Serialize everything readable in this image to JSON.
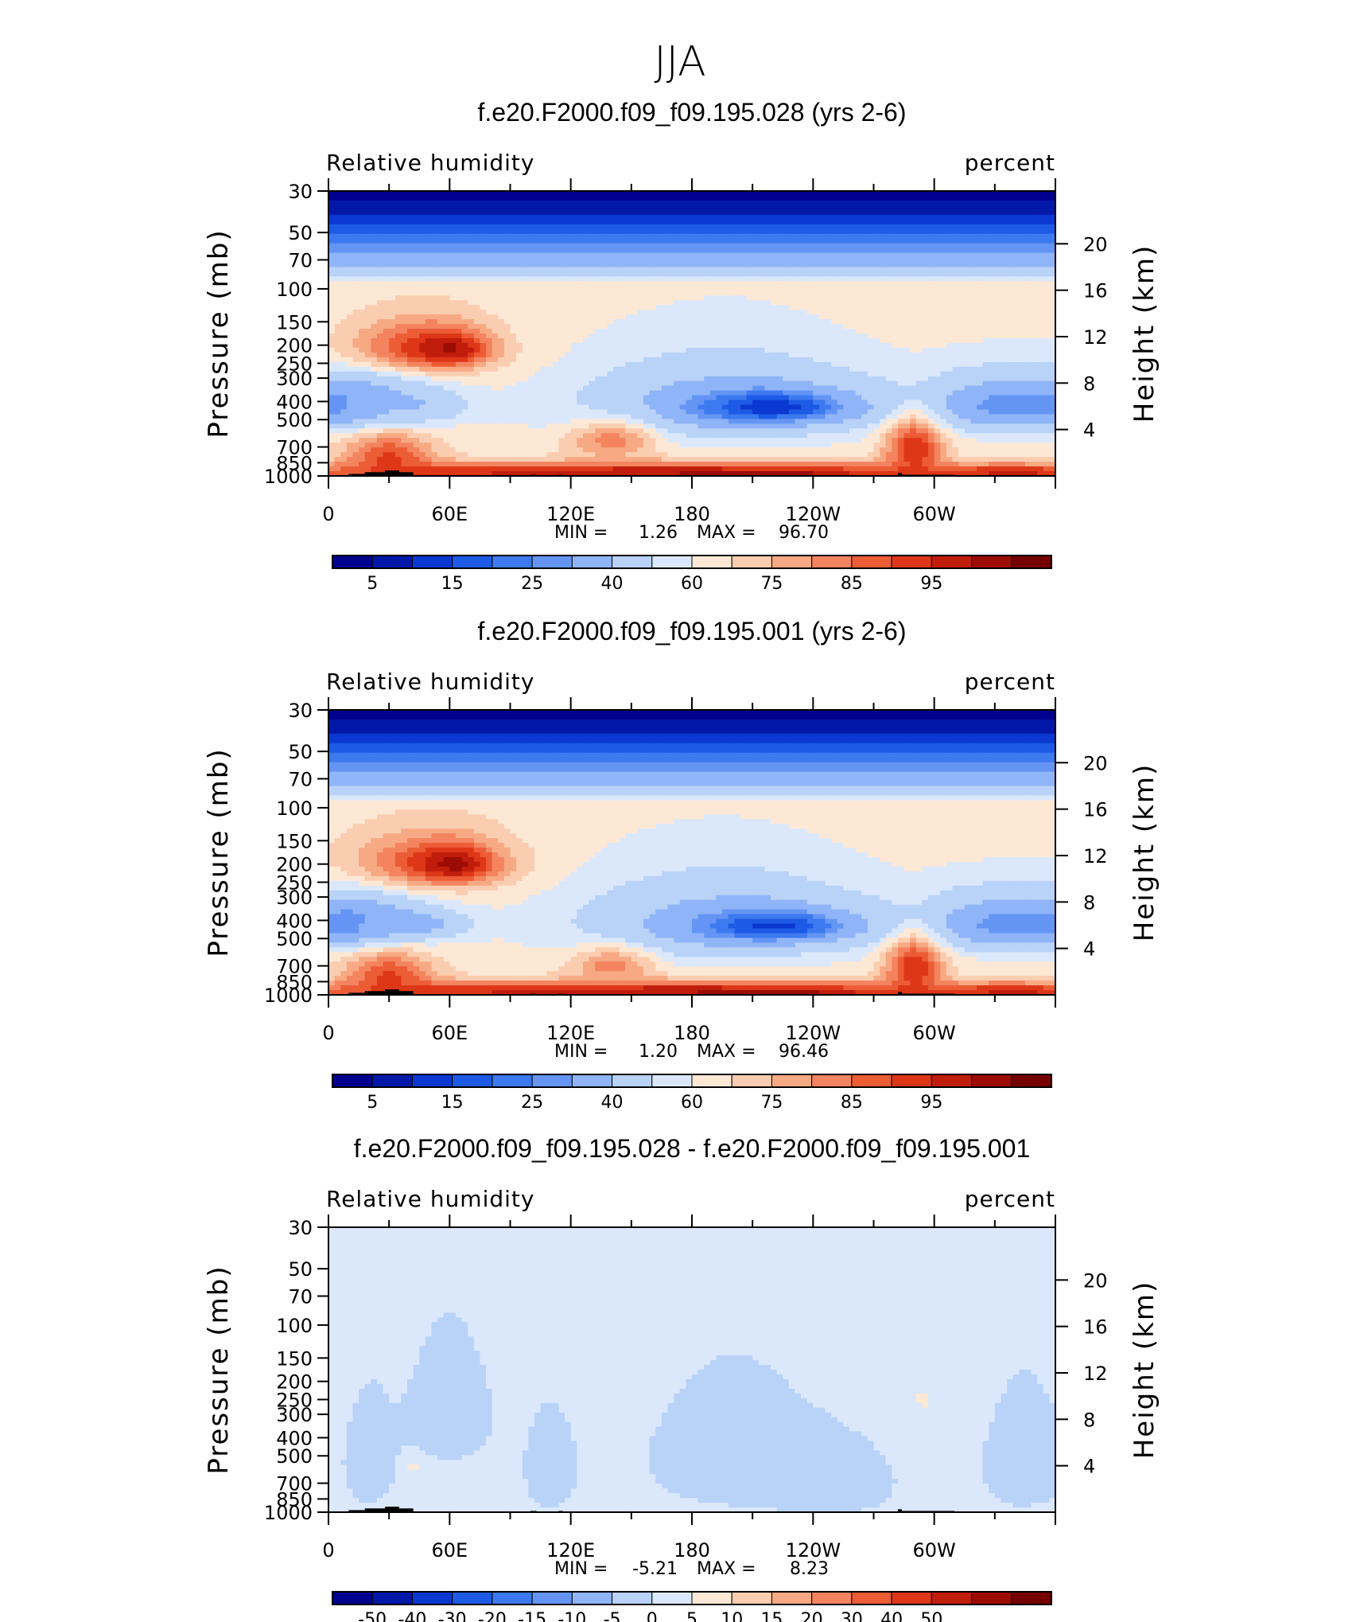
{
  "page_title": "JJA",
  "colors": {
    "rh_scale": [
      "#00008f",
      "#0218a8",
      "#0a38d0",
      "#1d5ae6",
      "#3d79ef",
      "#6495f4",
      "#8fb4f7",
      "#b9d2f7",
      "#dbe8fb",
      "#fde8d6",
      "#fbcdb0",
      "#f7a983",
      "#f3845f",
      "#ec5c35",
      "#dd3718",
      "#c11d0c",
      "#9c0c04",
      "#750000"
    ],
    "diff_scale": [
      "#00008f",
      "#0218a8",
      "#0a38d0",
      "#1d5ae6",
      "#3d79ef",
      "#6495f4",
      "#8fb4f7",
      "#b9d2f7",
      "#dbe8fb",
      "#fde8d6",
      "#fbcdb0",
      "#f7a983",
      "#f3845f",
      "#ec5c35",
      "#dd3718",
      "#c11d0c",
      "#9c0c04",
      "#750000"
    ],
    "terrain": "#000000"
  },
  "chart_data": [
    {
      "type": "heatmap",
      "title": "f.e20.F2000.f09_f09.195.028 (yrs 2-6)",
      "field_label": "Relative humidity",
      "units_label": "percent",
      "ylabel": "Pressure (mb)",
      "y2label": "Height (km)",
      "x_ticks": [
        "0",
        "60E",
        "120E",
        "180",
        "120W",
        "60W"
      ],
      "x_tick_lon": [
        0,
        60,
        120,
        180,
        240,
        300
      ],
      "xlim": [
        0,
        360
      ],
      "y_ticks": [
        "30",
        "50",
        "70",
        "100",
        "150",
        "200",
        "250",
        "300",
        "400",
        "500",
        "700",
        "850",
        "1000"
      ],
      "y_tick_p": [
        30,
        50,
        70,
        100,
        150,
        200,
        250,
        300,
        400,
        500,
        700,
        850,
        1000
      ],
      "y_scale": "log",
      "ylim": [
        1000,
        30
      ],
      "y2_ticks": [
        "20",
        "16",
        "12",
        "8",
        "4"
      ],
      "y2_tick_km": [
        20,
        16,
        12,
        8,
        4
      ],
      "stats": {
        "min_label": "MIN =",
        "min": "1.26",
        "max_label": "MAX =",
        "max": "96.70"
      },
      "colorbar_labels": [
        "5",
        "15",
        "25",
        "40",
        "60",
        "75",
        "85",
        "95"
      ],
      "levels": [
        5,
        10,
        15,
        20,
        25,
        30,
        40,
        50,
        55,
        60,
        65,
        70,
        75,
        80,
        85,
        90,
        95
      ],
      "blobs": [
        {
          "x": 180,
          "y": 650,
          "rx": 260,
          "ry": 500,
          "v": 57
        },
        {
          "x": 45,
          "y": 210,
          "rx": 35,
          "ry": 70,
          "v": 82
        },
        {
          "x": 60,
          "y": 210,
          "rx": 18,
          "ry": 40,
          "v": 92
        },
        {
          "x": 10,
          "y": 420,
          "rx": 35,
          "ry": 130,
          "v": 22
        },
        {
          "x": 35,
          "y": 420,
          "rx": 30,
          "ry": 80,
          "v": 38
        },
        {
          "x": 195,
          "y": 420,
          "rx": 70,
          "ry": 200,
          "v": 35
        },
        {
          "x": 220,
          "y": 430,
          "rx": 40,
          "ry": 90,
          "v": 12
        },
        {
          "x": 345,
          "y": 420,
          "rx": 55,
          "ry": 140,
          "v": 25
        },
        {
          "x": 30,
          "y": 780,
          "rx": 22,
          "ry": 200,
          "v": 80
        },
        {
          "x": 160,
          "y": 960,
          "rx": 200,
          "ry": 120,
          "v": 90
        },
        {
          "x": 220,
          "y": 990,
          "rx": 30,
          "ry": 30,
          "v": 97
        },
        {
          "x": 290,
          "y": 720,
          "rx": 14,
          "ry": 250,
          "v": 85
        },
        {
          "x": 340,
          "y": 960,
          "rx": 30,
          "ry": 80,
          "v": 88
        },
        {
          "x": 140,
          "y": 650,
          "rx": 22,
          "ry": 150,
          "v": 72
        }
      ]
    },
    {
      "type": "heatmap",
      "title": "f.e20.F2000.f09_f09.195.001 (yrs 2-6)",
      "field_label": "Relative humidity",
      "units_label": "percent",
      "ylabel": "Pressure (mb)",
      "y2label": "Height (km)",
      "x_ticks": [
        "0",
        "60E",
        "120E",
        "180",
        "120W",
        "60W"
      ],
      "x_tick_lon": [
        0,
        60,
        120,
        180,
        240,
        300
      ],
      "xlim": [
        0,
        360
      ],
      "y_ticks": [
        "30",
        "50",
        "70",
        "100",
        "150",
        "200",
        "250",
        "300",
        "400",
        "500",
        "700",
        "850",
        "1000"
      ],
      "y_tick_p": [
        30,
        50,
        70,
        100,
        150,
        200,
        250,
        300,
        400,
        500,
        700,
        850,
        1000
      ],
      "y_scale": "log",
      "ylim": [
        1000,
        30
      ],
      "y2_ticks": [
        "20",
        "16",
        "12",
        "8",
        "4"
      ],
      "y2_tick_km": [
        20,
        16,
        12,
        8,
        4
      ],
      "stats": {
        "min_label": "MIN =",
        "min": "1.20",
        "max_label": "MAX =",
        "max": "96.46"
      },
      "colorbar_labels": [
        "5",
        "15",
        "25",
        "40",
        "60",
        "75",
        "85",
        "95"
      ],
      "levels": [
        5,
        10,
        15,
        20,
        25,
        30,
        40,
        50,
        55,
        60,
        65,
        70,
        75,
        80,
        85,
        90,
        95
      ],
      "blobs": [
        {
          "x": 180,
          "y": 650,
          "rx": 260,
          "ry": 500,
          "v": 57
        },
        {
          "x": 50,
          "y": 200,
          "rx": 40,
          "ry": 70,
          "v": 80
        },
        {
          "x": 62,
          "y": 200,
          "rx": 18,
          "ry": 40,
          "v": 93
        },
        {
          "x": 10,
          "y": 420,
          "rx": 35,
          "ry": 130,
          "v": 22
        },
        {
          "x": 38,
          "y": 420,
          "rx": 28,
          "ry": 70,
          "v": 33
        },
        {
          "x": 195,
          "y": 420,
          "rx": 70,
          "ry": 200,
          "v": 35
        },
        {
          "x": 222,
          "y": 430,
          "rx": 38,
          "ry": 85,
          "v": 13
        },
        {
          "x": 345,
          "y": 420,
          "rx": 55,
          "ry": 140,
          "v": 25
        },
        {
          "x": 30,
          "y": 780,
          "rx": 22,
          "ry": 200,
          "v": 80
        },
        {
          "x": 160,
          "y": 960,
          "rx": 200,
          "ry": 120,
          "v": 90
        },
        {
          "x": 225,
          "y": 990,
          "rx": 30,
          "ry": 30,
          "v": 97
        },
        {
          "x": 290,
          "y": 720,
          "rx": 14,
          "ry": 250,
          "v": 85
        },
        {
          "x": 340,
          "y": 960,
          "rx": 30,
          "ry": 80,
          "v": 88
        },
        {
          "x": 140,
          "y": 700,
          "rx": 20,
          "ry": 150,
          "v": 72
        }
      ]
    },
    {
      "type": "heatmap",
      "title": "f.e20.F2000.f09_f09.195.028 - f.e20.F2000.f09_f09.195.001",
      "field_label": "Relative humidity",
      "units_label": "percent",
      "ylabel": "Pressure (mb)",
      "y2label": "Height (km)",
      "x_ticks": [
        "0",
        "60E",
        "120E",
        "180",
        "120W",
        "60W"
      ],
      "x_tick_lon": [
        0,
        60,
        120,
        180,
        240,
        300
      ],
      "xlim": [
        0,
        360
      ],
      "y_ticks": [
        "30",
        "50",
        "70",
        "100",
        "150",
        "200",
        "250",
        "300",
        "400",
        "500",
        "700",
        "850",
        "1000"
      ],
      "y_tick_p": [
        30,
        50,
        70,
        100,
        150,
        200,
        250,
        300,
        400,
        500,
        700,
        850,
        1000
      ],
      "y_scale": "log",
      "ylim": [
        1000,
        30
      ],
      "y2_ticks": [
        "20",
        "16",
        "12",
        "8",
        "4"
      ],
      "y2_tick_km": [
        20,
        16,
        12,
        8,
        4
      ],
      "stats": {
        "min_label": "MIN =",
        "min": "-5.21",
        "max_label": "MAX =",
        "max": "8.23"
      },
      "colorbar_labels": [
        "-50",
        "-40",
        "-30",
        "-20",
        "-15",
        "-10",
        "-5",
        "0",
        "5",
        "10",
        "15",
        "20",
        "30",
        "40",
        "50"
      ],
      "levels": [
        -50,
        -40,
        -30,
        -20,
        -15,
        -10,
        -5,
        0,
        5,
        10,
        15,
        20,
        30,
        40,
        50
      ],
      "blobs": [
        {
          "x": 180,
          "y": 600,
          "rx": 400,
          "ry": 900,
          "v": 2
        },
        {
          "x": 20,
          "y": 550,
          "rx": 15,
          "ry": 400,
          "v": -2
        },
        {
          "x": 60,
          "y": 300,
          "rx": 25,
          "ry": 260,
          "v": -2
        },
        {
          "x": 110,
          "y": 600,
          "rx": 15,
          "ry": 400,
          "v": -2
        },
        {
          "x": 200,
          "y": 520,
          "rx": 50,
          "ry": 450,
          "v": -2
        },
        {
          "x": 250,
          "y": 700,
          "rx": 35,
          "ry": 350,
          "v": -2
        },
        {
          "x": 345,
          "y": 550,
          "rx": 25,
          "ry": 450,
          "v": -2
        },
        {
          "x": 295,
          "y": 250,
          "rx": 6,
          "ry": 40,
          "v": 6
        },
        {
          "x": 42,
          "y": 560,
          "rx": 5,
          "ry": 40,
          "v": 6
        }
      ]
    }
  ]
}
